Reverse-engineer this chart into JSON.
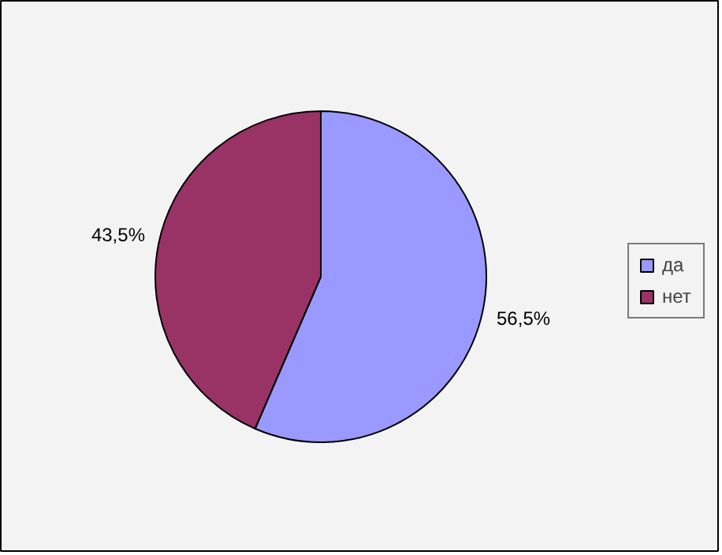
{
  "chart_data": {
    "type": "pie",
    "categories": [
      "да",
      "нет"
    ],
    "values": [
      56.5,
      43.5
    ],
    "colors": [
      "#9999ff",
      "#993366"
    ],
    "value_labels": [
      "56,5%",
      "43,5%"
    ],
    "legend": "right"
  }
}
